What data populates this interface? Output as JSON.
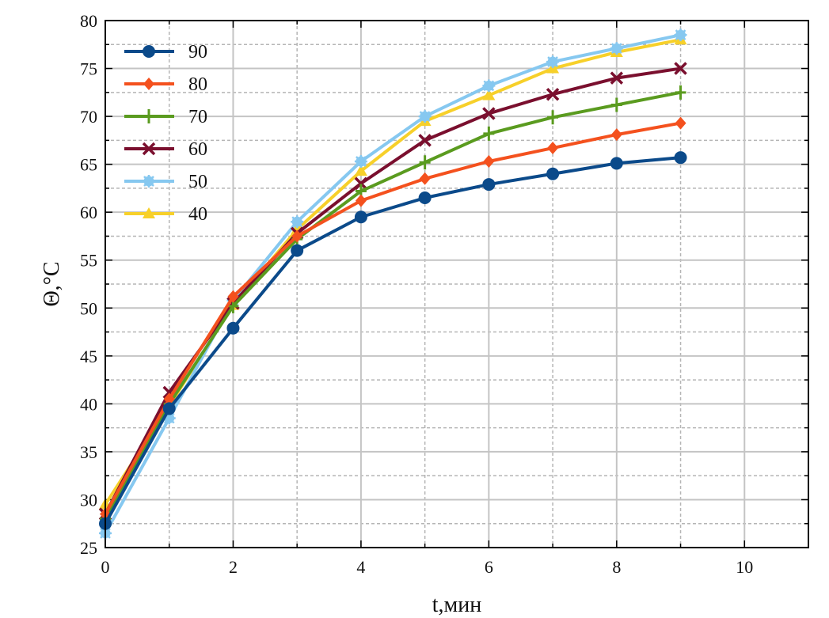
{
  "chart_data": {
    "type": "line",
    "title": "",
    "xlabel": "t,мин",
    "ylabel": "Θ,°C",
    "xlim": [
      0,
      11
    ],
    "ylim": [
      25,
      80
    ],
    "xticks": [
      0,
      2,
      4,
      6,
      8,
      10
    ],
    "yticks": [
      25,
      30,
      35,
      40,
      45,
      50,
      55,
      60,
      65,
      70,
      75,
      80
    ],
    "x_minor_step": 1,
    "y_minor_step": 2.5,
    "grid": true,
    "legend_position": "top-left",
    "x": [
      0,
      1,
      2,
      3,
      4,
      5,
      6,
      7,
      8,
      9
    ],
    "series": [
      {
        "name": "90",
        "color": "#0b4a8a",
        "marker": "circle",
        "values": [
          27.5,
          39.5,
          47.9,
          56.0,
          59.5,
          61.5,
          62.9,
          64.0,
          65.1,
          65.7
        ]
      },
      {
        "name": "80",
        "color": "#f4511e",
        "marker": "diamond",
        "values": [
          28.5,
          40.5,
          51.2,
          57.5,
          61.2,
          63.5,
          65.3,
          66.7,
          68.1,
          69.3
        ]
      },
      {
        "name": "70",
        "color": "#5a9b1f",
        "marker": "plus",
        "values": [
          28.0,
          40.0,
          50.2,
          57.2,
          62.2,
          65.2,
          68.2,
          69.9,
          71.2,
          72.5
        ]
      },
      {
        "name": "60",
        "color": "#7a0f2e",
        "marker": "x",
        "values": [
          28.5,
          41.2,
          50.5,
          57.8,
          63.0,
          67.5,
          70.3,
          72.3,
          74.0,
          75.0
        ]
      },
      {
        "name": "50",
        "color": "#86c8f0",
        "marker": "star",
        "values": [
          26.5,
          38.5,
          50.8,
          59.0,
          65.3,
          70.0,
          73.2,
          75.7,
          77.1,
          78.5
        ]
      },
      {
        "name": "40",
        "color": "#f7d02a",
        "marker": "triangle",
        "values": [
          29.5,
          39.8,
          50.3,
          58.2,
          64.3,
          69.5,
          72.2,
          75.0,
          76.7,
          78.0
        ]
      }
    ]
  }
}
